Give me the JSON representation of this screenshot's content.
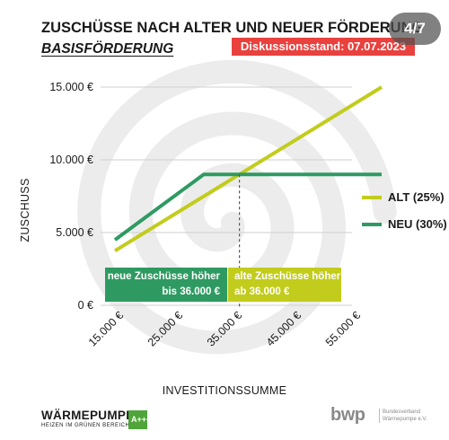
{
  "header": {
    "title": "ZUSCHÜSSE NACH ALTER UND NEUER FÖRDERUNG",
    "subtitle": "BASISFÖRDERUNG",
    "badge": "Diskussionsstand: 07.07.2023",
    "page_counter": "4/7"
  },
  "colors": {
    "alt": "#c2cc1c",
    "neu": "#2e9a62",
    "badge": "#e8413e",
    "swirl": "#ececec"
  },
  "chart_data": {
    "type": "line",
    "title": "ZUSCHÜSSE NACH ALTER UND NEUER FÖRDERUNG",
    "subtitle": "BASISFÖRDERUNG",
    "xlabel": "INVESTITIONSSUMME",
    "ylabel": "ZUSCHUSS",
    "x_tick_values": [
      15000,
      25000,
      35000,
      45000,
      55000
    ],
    "x_tick_labels": [
      "15.000 €",
      "25.000 €",
      "35.000 €",
      "45.000 €",
      "55.000 €"
    ],
    "y_tick_values": [
      0,
      5000,
      10000,
      15000
    ],
    "y_tick_labels": [
      "0 €",
      "5.000 €",
      "10.000 €",
      "15.000 €"
    ],
    "xlim": [
      15000,
      55000
    ],
    "ylim": [
      0,
      15000
    ],
    "grid": "horizontal",
    "legend_position": "right",
    "series": [
      {
        "name": "ALT (25%)",
        "color": "#c2cc1c",
        "x": [
          15000,
          60000
        ],
        "y": [
          3750,
          15000
        ]
      },
      {
        "name": "NEU (30%)",
        "color": "#2e9a62",
        "x": [
          15000,
          30000,
          60000
        ],
        "y": [
          4500,
          9000,
          9000
        ]
      }
    ],
    "intersection_x": 36000,
    "annotations": [
      {
        "text_lines": [
          "neue Zuschüsse höher",
          "bis 36.000 €"
        ],
        "series": "NEU (30%)"
      },
      {
        "text_lines": [
          "alte Zuschüsse höher",
          "ab 36.000 €"
        ],
        "series": "ALT (25%)"
      }
    ]
  },
  "footer": {
    "left_logo_title": "WÄRMEPUMPE",
    "left_logo_subtitle": "HEIZEN IM GRÜNEN BEREICH",
    "left_logo_badge": "A+++",
    "right_logo_text": "bwp",
    "right_logo_subtitle_1": "Bundesverband",
    "right_logo_subtitle_2": "Wärmepumpe e.V."
  }
}
